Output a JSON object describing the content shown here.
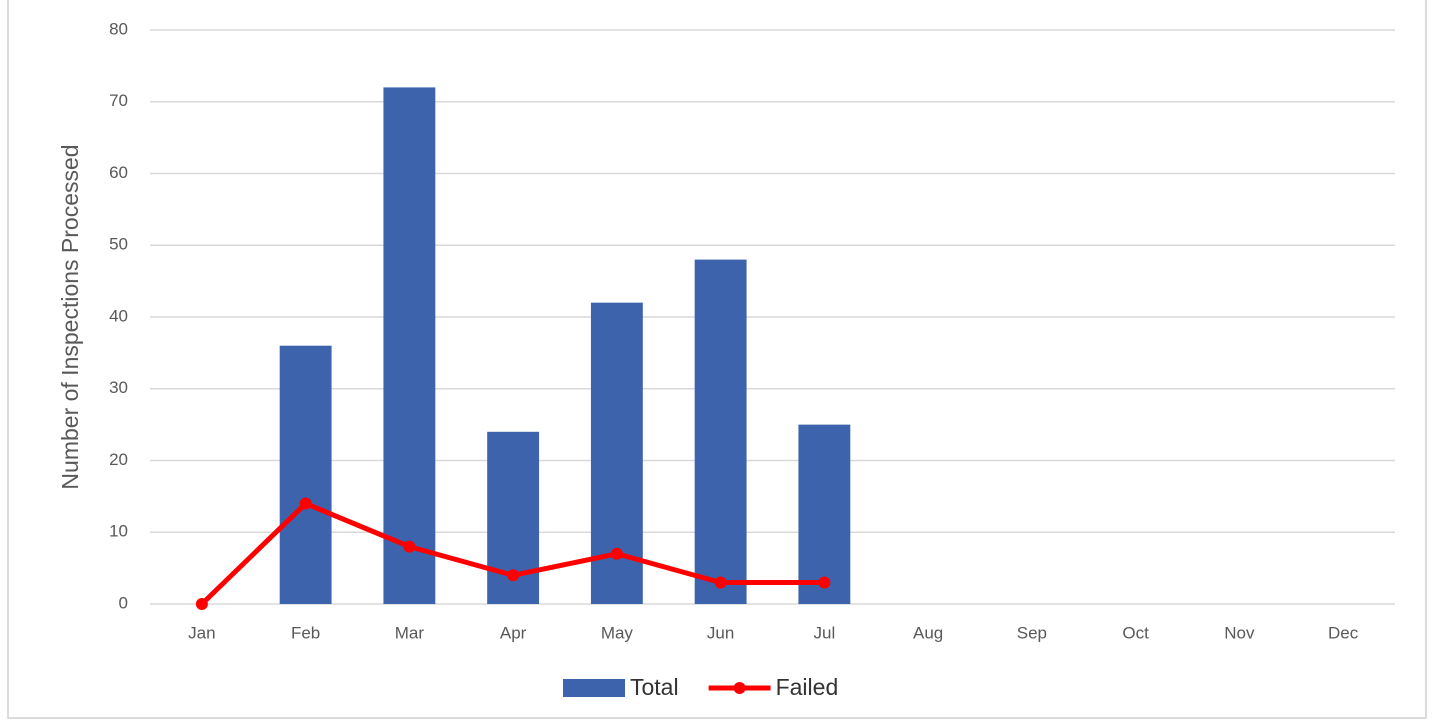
{
  "chart_data": {
    "type": "combo",
    "y_label": "Number of Inspections Processed",
    "categories": [
      "Jan",
      "Feb",
      "Mar",
      "Apr",
      "May",
      "Jun",
      "Jul",
      "Aug",
      "Sep",
      "Oct",
      "Nov",
      "Dec"
    ],
    "series": [
      {
        "name": "Total",
        "type": "bar",
        "color": "#3c63ac",
        "values": [
          0,
          36,
          72,
          24,
          42,
          48,
          25,
          null,
          null,
          null,
          null,
          null
        ]
      },
      {
        "name": "Failed",
        "type": "line",
        "color": "#ff0000",
        "values": [
          0,
          14,
          8,
          4,
          7,
          3,
          3,
          null,
          null,
          null,
          null,
          null
        ]
      }
    ],
    "ylim": [
      0,
      80
    ],
    "yticks": [
      0,
      10,
      20,
      30,
      40,
      50,
      60,
      70,
      80
    ],
    "grid": true,
    "legend": "bottom"
  }
}
